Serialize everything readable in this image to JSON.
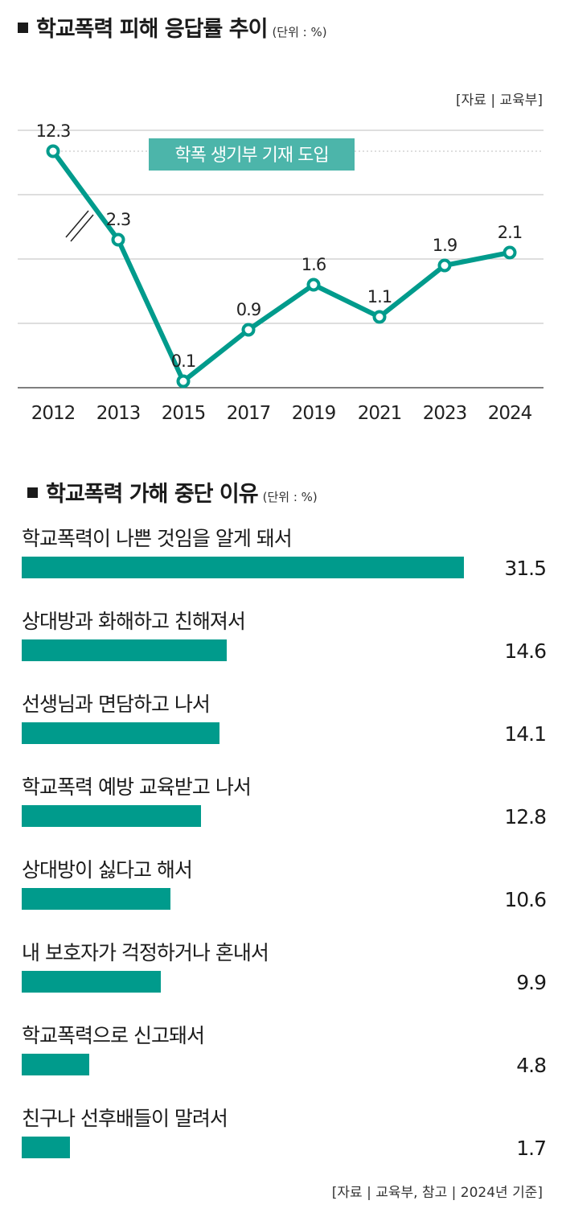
{
  "accent_color": "#009b8c",
  "charts": {
    "line": {
      "title": "학교폭력 피해 응답률 추이",
      "unit": "(단위 : %)",
      "source": "[자료 | 교육부]",
      "annotation": "학폭 생기부 기재 도입"
    },
    "bar": {
      "title": "학교폭력 가해 중단 이유",
      "unit": "(단위 : %)",
      "source": "[자료 | 교육부, 참고 | 2024년 기준]"
    }
  },
  "chart_data": [
    {
      "type": "line",
      "title": "학교폭력 피해 응답률 추이",
      "categories": [
        "2012",
        "2013",
        "2015",
        "2017",
        "2019",
        "2021",
        "2023",
        "2024"
      ],
      "values": [
        12.3,
        2.3,
        0.1,
        0.9,
        1.6,
        1.1,
        1.9,
        2.1
      ],
      "value_labels": [
        "12.3",
        "2.3",
        "0.1",
        "0.9",
        "1.6",
        "1.1",
        "1.9",
        "2.1"
      ],
      "axis_break": true,
      "ylim": [
        0,
        3
      ],
      "grid": true
    },
    {
      "type": "bar",
      "title": "학교폭력 가해 중단 이유",
      "categories": [
        "학교폭력이 나쁜 것임을 알게 돼서",
        "상대방과 화해하고 친해져서",
        "선생님과 면담하고 나서",
        "학교폭력 예방 교육받고 나서",
        "상대방이 싫다고 해서",
        "내 보호자가 걱정하거나 혼내서",
        "학교폭력으로 신고돼서",
        "친구나 선후배들이 말려서"
      ],
      "values": [
        31.5,
        14.6,
        14.1,
        12.8,
        10.6,
        9.9,
        4.8,
        1.7
      ],
      "value_labels": [
        "31.5",
        "14.6",
        "14.1",
        "12.8",
        "10.6",
        "9.9",
        "4.8",
        "1.7"
      ]
    }
  ]
}
